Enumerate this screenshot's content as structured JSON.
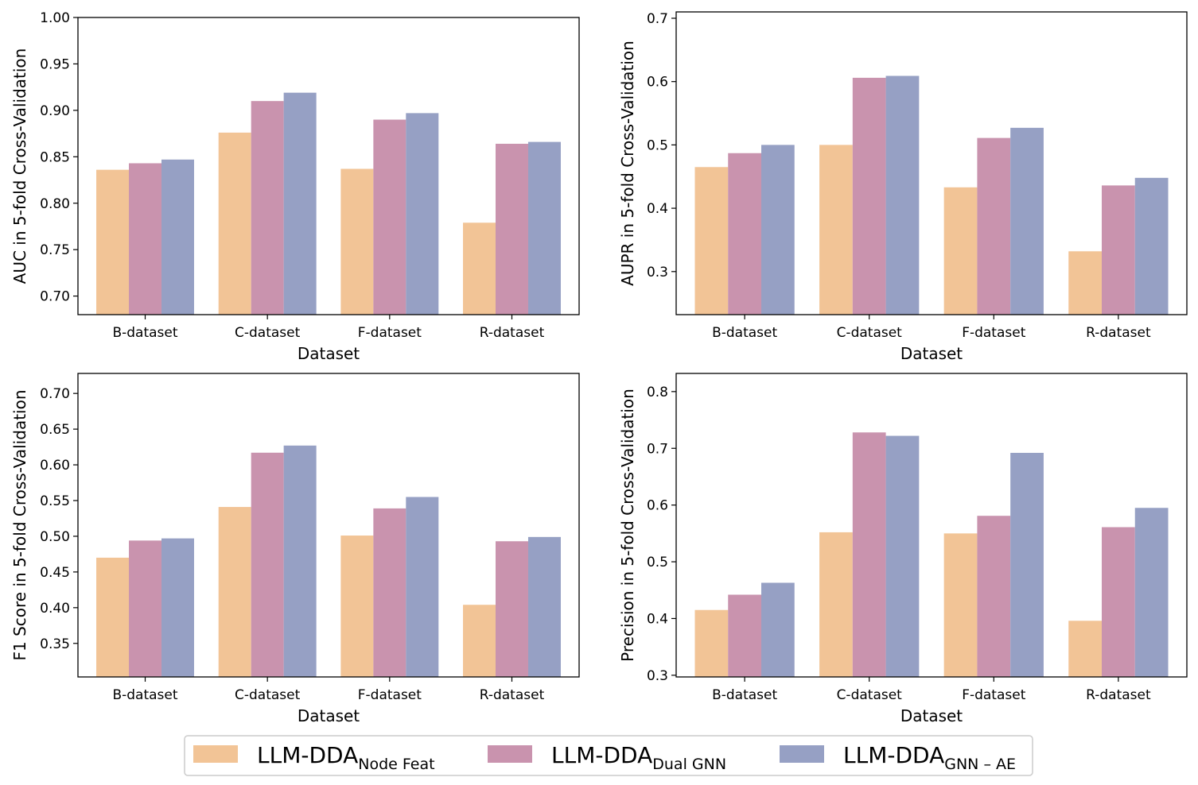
{
  "chart_data": {
    "type": "bar",
    "legend": {
      "location": "bottom-center",
      "entries": [
        {
          "base": "LLM-DDA",
          "sub": "Node Feat",
          "color": "#f2c496"
        },
        {
          "base": "LLM-DDA",
          "sub": "Dual GNN",
          "color": "#c993ae"
        },
        {
          "base": "LLM-DDA",
          "sub": "GNN – AE",
          "color": "#96a0c4"
        }
      ]
    },
    "panels": [
      {
        "id": "auc",
        "xlabel": "Dataset",
        "ylabel": "AUC in 5-fold Cross-Validation",
        "categories": [
          "B-dataset",
          "C-dataset",
          "F-dataset",
          "R-dataset"
        ],
        "ylim": [
          0.68,
          1.0
        ],
        "yticks": [
          "0.70",
          "0.75",
          "0.80",
          "0.85",
          "0.90",
          "0.95",
          "1.00"
        ],
        "series": [
          {
            "name": "LLM-DDA Node Feat",
            "values": [
              0.836,
              0.876,
              0.837,
              0.779
            ]
          },
          {
            "name": "LLM-DDA Dual GNN",
            "values": [
              0.843,
              0.91,
              0.89,
              0.864
            ]
          },
          {
            "name": "LLM-DDA GNN-AE",
            "values": [
              0.847,
              0.919,
              0.897,
              0.866
            ]
          }
        ]
      },
      {
        "id": "aupr",
        "xlabel": "Dataset",
        "ylabel": "AUPR in 5-fold Cross-Validation",
        "categories": [
          "B-dataset",
          "C-dataset",
          "F-dataset",
          "R-dataset"
        ],
        "ylim": [
          0.232,
          0.71
        ],
        "yticks": [
          "0.3",
          "0.4",
          "0.5",
          "0.6",
          "0.7"
        ],
        "series": [
          {
            "name": "LLM-DDA Node Feat",
            "values": [
              0.465,
              0.5,
              0.433,
              0.332
            ]
          },
          {
            "name": "LLM-DDA Dual GNN",
            "values": [
              0.487,
              0.606,
              0.511,
              0.436
            ]
          },
          {
            "name": "LLM-DDA GNN-AE",
            "values": [
              0.5,
              0.609,
              0.527,
              0.448
            ]
          }
        ]
      },
      {
        "id": "f1",
        "xlabel": "Dataset",
        "ylabel": "F1 Score in 5-fold Cross-Validation",
        "categories": [
          "B-dataset",
          "C-dataset",
          "F-dataset",
          "R-dataset"
        ],
        "ylim": [
          0.303,
          0.728
        ],
        "yticks": [
          "0.35",
          "0.40",
          "0.45",
          "0.50",
          "0.55",
          "0.60",
          "0.65",
          "0.70"
        ],
        "series": [
          {
            "name": "LLM-DDA Node Feat",
            "values": [
              0.47,
              0.541,
              0.501,
              0.404
            ]
          },
          {
            "name": "LLM-DDA Dual GNN",
            "values": [
              0.494,
              0.617,
              0.539,
              0.493
            ]
          },
          {
            "name": "LLM-DDA GNN-AE",
            "values": [
              0.497,
              0.627,
              0.555,
              0.499
            ]
          }
        ]
      },
      {
        "id": "precision",
        "xlabel": "Dataset",
        "ylabel": "Precision in 5-fold Cross-Validation",
        "categories": [
          "B-dataset",
          "C-dataset",
          "F-dataset",
          "R-dataset"
        ],
        "ylim": [
          0.297,
          0.832
        ],
        "yticks": [
          "0.3",
          "0.4",
          "0.5",
          "0.6",
          "0.7",
          "0.8"
        ],
        "series": [
          {
            "name": "LLM-DDA Node Feat",
            "values": [
              0.415,
              0.552,
              0.55,
              0.396
            ]
          },
          {
            "name": "LLM-DDA Dual GNN",
            "values": [
              0.442,
              0.728,
              0.581,
              0.561
            ]
          },
          {
            "name": "LLM-DDA GNN-AE",
            "values": [
              0.463,
              0.722,
              0.692,
              0.595
            ]
          }
        ]
      }
    ]
  }
}
